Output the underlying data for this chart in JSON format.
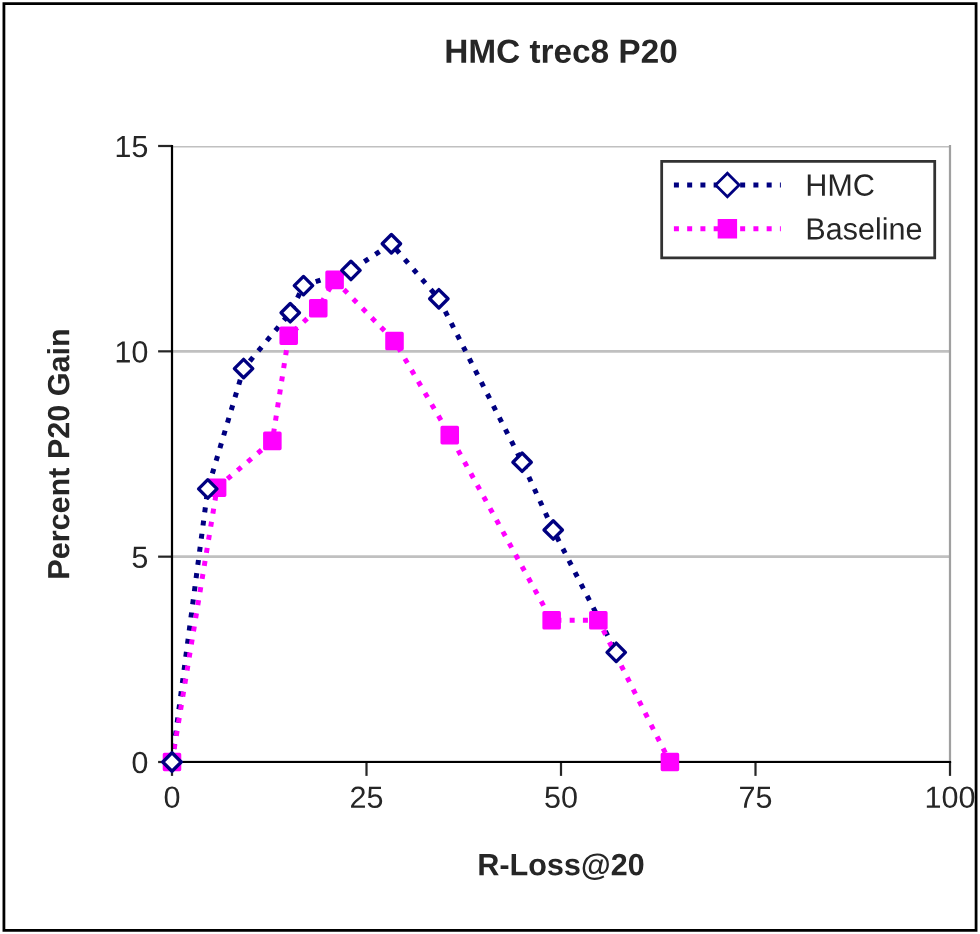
{
  "chart_data": {
    "type": "line",
    "title": "HMC trec8 P20",
    "xlabel": "R-Loss@20",
    "ylabel": "Percent P20 Gain",
    "xlim": [
      0,
      100
    ],
    "xticks": [
      0,
      25,
      50,
      75,
      100
    ],
    "ylim": [
      0,
      15
    ],
    "yticks": [
      0,
      5,
      10,
      15
    ],
    "grid": "y",
    "legend": "top right",
    "line_style": "dotted",
    "series": [
      {
        "name": "HMC",
        "color": "#000080",
        "marker": "diamond",
        "x": [
          0,
          4.6,
          9.2,
          15.2,
          16.9,
          23.0,
          28.2,
          34.3,
          45.0,
          49.0,
          57.1
        ],
        "values": [
          0,
          6.65,
          9.58,
          10.94,
          11.6,
          11.97,
          12.62,
          11.28,
          7.3,
          5.65,
          2.67
        ]
      },
      {
        "name": "Baseline",
        "color": "#ff00ff",
        "marker": "square",
        "x": [
          0,
          5.8,
          12.9,
          15.0,
          18.8,
          20.9,
          28.6,
          35.7,
          48.8,
          54.8,
          64.0
        ],
        "values": [
          0,
          6.68,
          7.82,
          10.38,
          11.05,
          11.74,
          10.25,
          7.96,
          3.45,
          3.45,
          0
        ]
      }
    ]
  }
}
